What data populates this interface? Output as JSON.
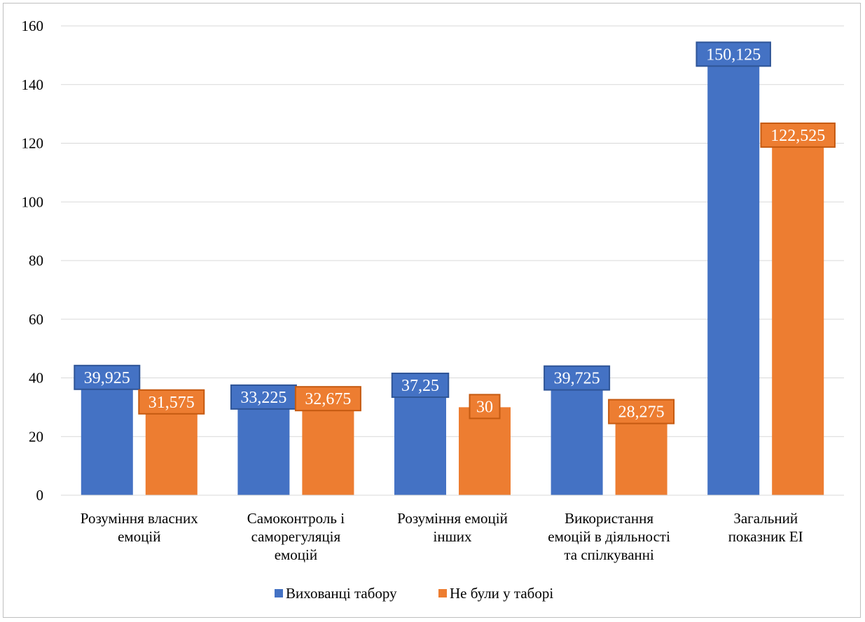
{
  "chart_data": {
    "type": "bar",
    "categories": [
      [
        "Розуміння власних",
        "емоцій"
      ],
      [
        "Самоконтроль і",
        "саморегуляція",
        "емоцій"
      ],
      [
        "Розуміння емоцій",
        "інших"
      ],
      [
        "Використання",
        "емоцій в діяльності",
        "та спілкуванні"
      ],
      [
        "Загальний",
        "показник ЕІ"
      ]
    ],
    "series": [
      {
        "name": "Вихованці табору",
        "color": "#4472C4",
        "label_border": "#2F5597",
        "values": [
          39.925,
          33.225,
          37.25,
          39.725,
          150.125
        ],
        "labels": [
          "39,925",
          "33,225",
          "37,25",
          "39,725",
          "150,125"
        ]
      },
      {
        "name": "Не були у таборі",
        "color": "#ED7D31",
        "label_border": "#C55A11",
        "values": [
          31.575,
          32.675,
          30,
          28.275,
          122.525
        ],
        "labels": [
          "31,575",
          "32,675",
          "30",
          "28,275",
          "122,525"
        ]
      }
    ],
    "ylim": [
      0,
      160
    ],
    "yticks": [
      0,
      20,
      40,
      60,
      80,
      100,
      120,
      140,
      160
    ],
    "grid": true,
    "legend_position": "bottom"
  }
}
